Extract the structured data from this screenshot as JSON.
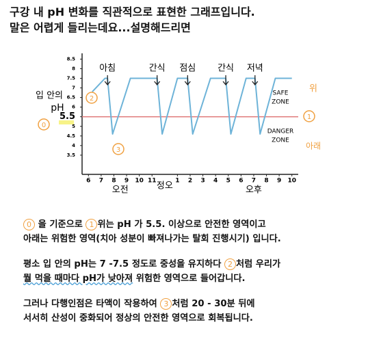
{
  "header": {
    "lines": [
      "구강 내 pH 변화를 직관적으로 표현한 그래프입니다.",
      "말은 어렵게 들리는데요...설명해드리면"
    ]
  },
  "chart_data": {
    "type": "line",
    "x": [
      6.3,
      7.3,
      7.5,
      7.9,
      9.3,
      11.2,
      11.4,
      11.8,
      13.0,
      13.6,
      13.8,
      14.2,
      15.6,
      16.6,
      16.8,
      17.2,
      18.4,
      18.9,
      19.1,
      19.5,
      20.7,
      22.0
    ],
    "series": [
      {
        "name": "입 안의 pH",
        "color": "#6db3d8",
        "values": [
          6.8,
          7.5,
          7.5,
          4.6,
          7.5,
          7.5,
          7.5,
          4.6,
          7.5,
          7.5,
          7.5,
          4.6,
          7.5,
          7.5,
          7.5,
          4.6,
          7.5,
          7.5,
          7.5,
          4.6,
          7.5,
          7.5
        ]
      }
    ],
    "xlim": [
      5.5,
      22.5
    ],
    "ylim": [
      2.5,
      8.8
    ],
    "yticks": [
      8.5,
      8,
      7.5,
      7,
      6.5,
      6,
      5.5,
      5,
      4.5,
      4,
      3.5
    ],
    "xticks": [
      {
        "value": 6,
        "label": "6"
      },
      {
        "value": 7,
        "label": "7"
      },
      {
        "value": 8,
        "label": "8"
      },
      {
        "value": 9,
        "label": "9"
      },
      {
        "value": 10,
        "label": "10"
      },
      {
        "value": 11,
        "label": "11"
      },
      {
        "value": 13,
        "label": "1"
      },
      {
        "value": 14,
        "label": "2"
      },
      {
        "value": 15,
        "label": "3"
      },
      {
        "value": 16,
        "label": "4"
      },
      {
        "value": 17,
        "label": "5"
      },
      {
        "value": 18,
        "label": "6"
      },
      {
        "value": 19,
        "label": "7"
      },
      {
        "value": 20,
        "label": "8"
      },
      {
        "value": 21,
        "label": "9"
      },
      {
        "value": 22,
        "label": "10"
      }
    ],
    "reference_line": {
      "value": 5.5,
      "color": "#e07b7b"
    },
    "meals": [
      {
        "x": 7.5,
        "label": "아침"
      },
      {
        "x": 11.4,
        "label": "간식"
      },
      {
        "x": 13.8,
        "label": "점심"
      },
      {
        "x": 16.8,
        "label": "간식"
      },
      {
        "x": 19.1,
        "label": "저녁"
      }
    ],
    "periods": [
      {
        "x": 8.5,
        "label": "오전"
      },
      {
        "x": 12,
        "label": "정오"
      },
      {
        "x": 19,
        "label": "오후"
      }
    ],
    "y_label": [
      "입 안의",
      "pH"
    ],
    "markers": [
      "0",
      "1",
      "2",
      "3"
    ],
    "zones": {
      "safe": [
        "SAFE",
        "ZONE"
      ],
      "safe_note": "위",
      "danger": [
        "DANGER",
        "ZONE"
      ],
      "danger_note": "아래"
    }
  },
  "paragraphs": [
    [
      [
        {
          "marker": "0"
        },
        {
          "text": " 을 기준으로 "
        },
        {
          "marker": "1"
        },
        {
          "text": "위는 pH 가 5.5. 이상으로 안전한 영역이고"
        }
      ],
      [
        {
          "text": "아래는 위험한 영역(치아 성분이 빠져나가는 탈회 진행시기) 입니다."
        }
      ]
    ],
    [
      [
        {
          "text": "평소 입 안의 pH는 7 -7.5 정도로 중성을 유지하다 "
        },
        {
          "marker": "2"
        },
        {
          "text": "처럼 우리가"
        }
      ],
      [
        {
          "text": "뭘 먹을 때마다 pH가 낮아져",
          "underline": true
        },
        {
          "text": " 위험한 영역으로 들어갑니다."
        }
      ]
    ],
    [
      [
        {
          "text": "그러나 다행인점은 타액이 작용하여 "
        },
        {
          "marker": "3"
        },
        {
          "text": "처럼 20 - 30분 뒤에"
        }
      ],
      [
        {
          "text": "서서히 산성이 중화되어 정상의 안전한 영역으로 회복됩니다."
        }
      ]
    ]
  ]
}
